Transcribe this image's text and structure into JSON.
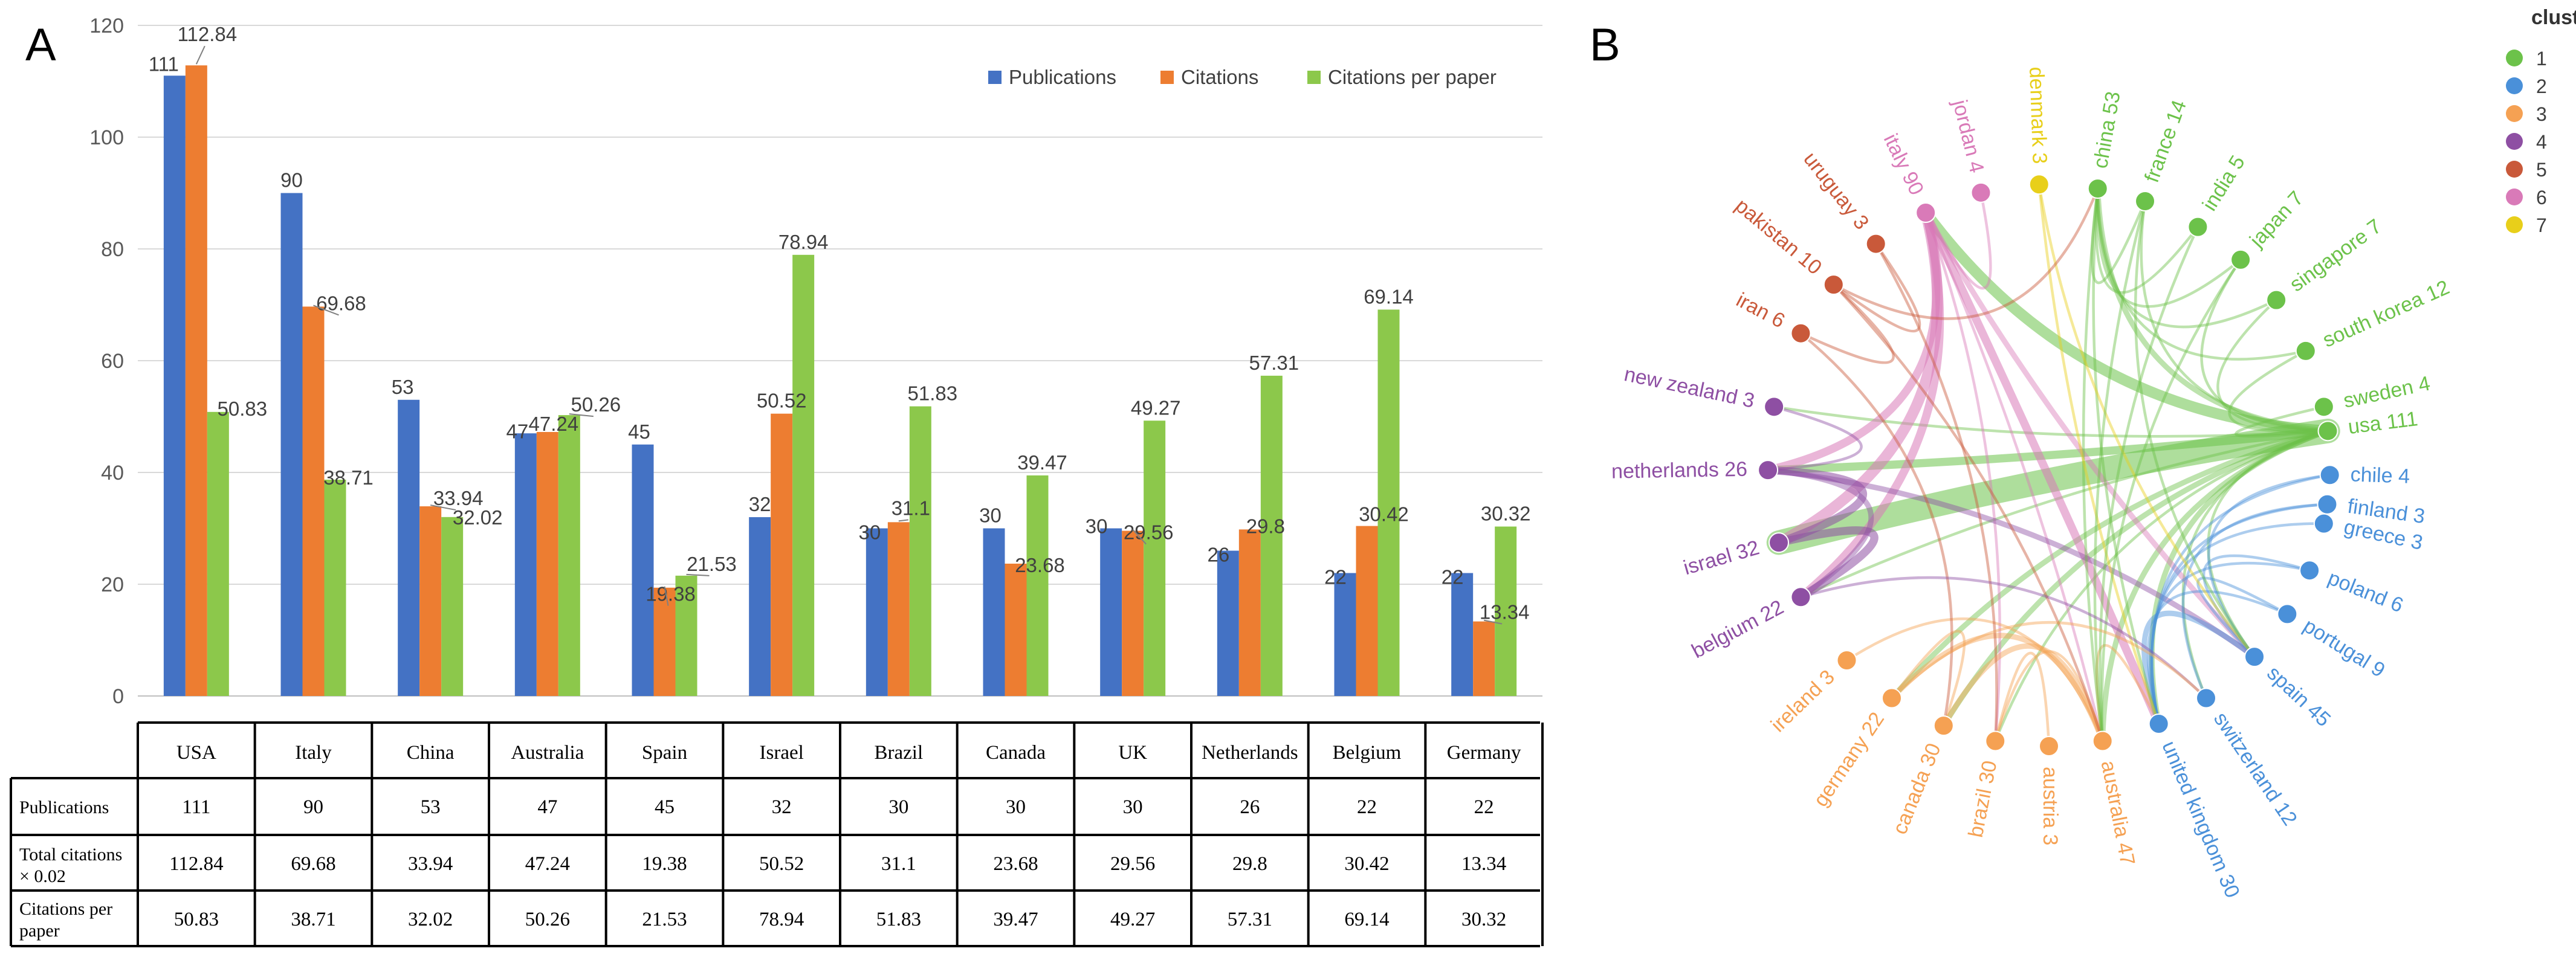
{
  "panel_a": {
    "label": "A",
    "table": {
      "row_headers": [
        "Publications",
        "Total citations × 0.02",
        "Citations per paper"
      ]
    }
  },
  "panel_b": {
    "label": "B",
    "legend_title": "cluster",
    "clusters": [
      {
        "id": "1",
        "color": "#6cc24a"
      },
      {
        "id": "2",
        "color": "#4a90d9"
      },
      {
        "id": "3",
        "color": "#f5a153"
      },
      {
        "id": "4",
        "color": "#8e4fa3"
      },
      {
        "id": "5",
        "color": "#c9593a"
      },
      {
        "id": "6",
        "color": "#d97ab8"
      },
      {
        "id": "7",
        "color": "#e8cf1a"
      }
    ]
  },
  "chart_data": [
    {
      "type": "bar",
      "title": "",
      "xlabel": "",
      "ylabel": "",
      "ylim": [
        0,
        120
      ],
      "yticks": [
        0,
        20,
        40,
        60,
        80,
        100,
        120
      ],
      "grid": true,
      "legend": "top-right",
      "categories": [
        "USA",
        "Italy",
        "China",
        "Australia",
        "Spain",
        "Israel",
        "Brazil",
        "Canada",
        "UK",
        "Netherlands",
        "Belgium",
        "Germany"
      ],
      "series": [
        {
          "name": "Publications",
          "color": "#4472c4",
          "values": [
            111,
            90,
            53,
            47,
            45,
            32,
            30,
            30,
            30,
            26,
            22,
            22
          ]
        },
        {
          "name": "Citations",
          "color": "#ed7d31",
          "values": [
            112.84,
            69.68,
            33.94,
            47.24,
            19.38,
            50.52,
            31.1,
            23.68,
            29.56,
            29.8,
            30.42,
            13.34
          ]
        },
        {
          "name": "Citations per paper",
          "color": "#8cc84b",
          "values": [
            50.83,
            38.71,
            32.02,
            50.26,
            21.53,
            78.94,
            51.83,
            39.47,
            49.27,
            57.31,
            69.14,
            30.32
          ]
        }
      ]
    },
    {
      "type": "chord",
      "title": "",
      "nodes": [
        {
          "name": "usa",
          "value": 111,
          "cluster": "1"
        },
        {
          "name": "sweden",
          "value": 4,
          "cluster": "1"
        },
        {
          "name": "south korea",
          "value": 12,
          "cluster": "1"
        },
        {
          "name": "singapore",
          "value": 7,
          "cluster": "1"
        },
        {
          "name": "japan",
          "value": 7,
          "cluster": "1"
        },
        {
          "name": "india",
          "value": 5,
          "cluster": "1"
        },
        {
          "name": "france",
          "value": 14,
          "cluster": "1"
        },
        {
          "name": "china",
          "value": 53,
          "cluster": "1"
        },
        {
          "name": "denmark",
          "value": 3,
          "cluster": "7"
        },
        {
          "name": "jordan",
          "value": 4,
          "cluster": "6"
        },
        {
          "name": "italy",
          "value": 90,
          "cluster": "6"
        },
        {
          "name": "uruguay",
          "value": 3,
          "cluster": "5"
        },
        {
          "name": "pakistan",
          "value": 10,
          "cluster": "5"
        },
        {
          "name": "iran",
          "value": 6,
          "cluster": "5"
        },
        {
          "name": "new zealand",
          "value": 3,
          "cluster": "4"
        },
        {
          "name": "netherlands",
          "value": 26,
          "cluster": "4"
        },
        {
          "name": "israel",
          "value": 32,
          "cluster": "4"
        },
        {
          "name": "belgium",
          "value": 22,
          "cluster": "4"
        },
        {
          "name": "ireland",
          "value": 3,
          "cluster": "3"
        },
        {
          "name": "germany",
          "value": 22,
          "cluster": "3"
        },
        {
          "name": "canada",
          "value": 30,
          "cluster": "3"
        },
        {
          "name": "brazil",
          "value": 30,
          "cluster": "3"
        },
        {
          "name": "austria",
          "value": 3,
          "cluster": "3"
        },
        {
          "name": "australia",
          "value": 47,
          "cluster": "3"
        },
        {
          "name": "united kingdom",
          "value": 30,
          "cluster": "2"
        },
        {
          "name": "switzerland",
          "value": 12,
          "cluster": "2"
        },
        {
          "name": "spain",
          "value": 45,
          "cluster": "2"
        },
        {
          "name": "portugal",
          "value": 9,
          "cluster": "2"
        },
        {
          "name": "poland",
          "value": 6,
          "cluster": "2"
        },
        {
          "name": "greece",
          "value": 3,
          "cluster": "2"
        },
        {
          "name": "finland",
          "value": 3,
          "cluster": "2"
        },
        {
          "name": "chile",
          "value": 4,
          "cluster": "2"
        }
      ],
      "links": [
        {
          "source": "usa",
          "target": "israel",
          "weight": 9
        },
        {
          "source": "usa",
          "target": "italy",
          "weight": 4
        },
        {
          "source": "usa",
          "target": "netherlands",
          "weight": 3
        },
        {
          "source": "usa",
          "target": "china",
          "weight": 2
        },
        {
          "source": "usa",
          "target": "canada",
          "weight": 2
        },
        {
          "source": "usa",
          "target": "germany",
          "weight": 2
        },
        {
          "source": "usa",
          "target": "united kingdom",
          "weight": 2
        },
        {
          "source": "usa",
          "target": "australia",
          "weight": 2
        },
        {
          "source": "usa",
          "target": "belgium",
          "weight": 1
        },
        {
          "source": "usa",
          "target": "spain",
          "weight": 1
        },
        {
          "source": "usa",
          "target": "brazil",
          "weight": 1
        },
        {
          "source": "usa",
          "target": "new zealand",
          "weight": 1
        },
        {
          "source": "usa",
          "target": "france",
          "weight": 1
        },
        {
          "source": "usa",
          "target": "south korea",
          "weight": 1
        },
        {
          "source": "usa",
          "target": "sweden",
          "weight": 1
        },
        {
          "source": "usa",
          "target": "switzerland",
          "weight": 1
        },
        {
          "source": "usa",
          "target": "japan",
          "weight": 1
        },
        {
          "source": "usa",
          "target": "singapore",
          "weight": 1
        },
        {
          "source": "italy",
          "target": "israel",
          "weight": 4
        },
        {
          "source": "italy",
          "target": "belgium",
          "weight": 3
        },
        {
          "source": "italy",
          "target": "netherlands",
          "weight": 3
        },
        {
          "source": "italy",
          "target": "spain",
          "weight": 2
        },
        {
          "source": "italy",
          "target": "united kingdom",
          "weight": 3
        },
        {
          "source": "italy",
          "target": "jordan",
          "weight": 1
        },
        {
          "source": "italy",
          "target": "australia",
          "weight": 1
        },
        {
          "source": "italy",
          "target": "brazil",
          "weight": 1
        },
        {
          "source": "israel",
          "target": "netherlands",
          "weight": 3
        },
        {
          "source": "israel",
          "target": "belgium",
          "weight": 3
        },
        {
          "source": "netherlands",
          "target": "belgium",
          "weight": 2
        },
        {
          "source": "netherlands",
          "target": "spain",
          "weight": 2
        },
        {
          "source": "netherlands",
          "target": "new zealand",
          "weight": 1
        },
        {
          "source": "australia",
          "target": "canada",
          "weight": 2
        },
        {
          "source": "australia",
          "target": "germany",
          "weight": 2
        },
        {
          "source": "australia",
          "target": "brazil",
          "weight": 1
        },
        {
          "source": "australia",
          "target": "ireland",
          "weight": 1
        },
        {
          "source": "australia",
          "target": "united kingdom",
          "weight": 1
        },
        {
          "source": "canada",
          "target": "germany",
          "weight": 1
        },
        {
          "source": "brazil",
          "target": "austria",
          "weight": 1
        },
        {
          "source": "united kingdom",
          "target": "spain",
          "weight": 2
        },
        {
          "source": "united kingdom",
          "target": "chile",
          "weight": 1
        },
        {
          "source": "united kingdom",
          "target": "finland",
          "weight": 1
        },
        {
          "source": "united kingdom",
          "target": "greece",
          "weight": 1
        },
        {
          "source": "united kingdom",
          "target": "poland",
          "weight": 1
        },
        {
          "source": "united kingdom",
          "target": "portugal",
          "weight": 1
        },
        {
          "source": "spain",
          "target": "chile",
          "weight": 1
        },
        {
          "source": "spain",
          "target": "portugal",
          "weight": 1
        },
        {
          "source": "spain",
          "target": "poland",
          "weight": 1
        },
        {
          "source": "switzerland",
          "target": "finland",
          "weight": 1
        },
        {
          "source": "china",
          "target": "france",
          "weight": 1
        },
        {
          "source": "china",
          "target": "india",
          "weight": 1
        },
        {
          "source": "china",
          "target": "japan",
          "weight": 1
        },
        {
          "source": "china",
          "target": "singapore",
          "weight": 1
        },
        {
          "source": "china",
          "target": "south korea",
          "weight": 1
        },
        {
          "source": "china",
          "target": "australia",
          "weight": 1
        },
        {
          "source": "china",
          "target": "united kingdom",
          "weight": 1
        },
        {
          "source": "denmark",
          "target": "united kingdom",
          "weight": 1
        },
        {
          "source": "denmark",
          "target": "spain",
          "weight": 1
        },
        {
          "source": "france",
          "target": "spain",
          "weight": 1
        },
        {
          "source": "france",
          "target": "australia",
          "weight": 1
        },
        {
          "source": "india",
          "target": "australia",
          "weight": 1
        },
        {
          "source": "japan",
          "target": "australia",
          "weight": 1
        },
        {
          "source": "pakistan",
          "target": "iran",
          "weight": 1
        },
        {
          "source": "pakistan",
          "target": "uruguay",
          "weight": 1
        },
        {
          "source": "pakistan",
          "target": "china",
          "weight": 1
        },
        {
          "source": "pakistan",
          "target": "australia",
          "weight": 1
        },
        {
          "source": "iran",
          "target": "canada",
          "weight": 1
        },
        {
          "source": "iran",
          "target": "iran",
          "weight": 0
        },
        {
          "source": "uruguay",
          "target": "brazil",
          "weight": 1
        },
        {
          "source": "belgium",
          "target": "switzerland",
          "weight": 1
        },
        {
          "source": "germany",
          "target": "switzerland",
          "weight": 1
        }
      ]
    }
  ]
}
